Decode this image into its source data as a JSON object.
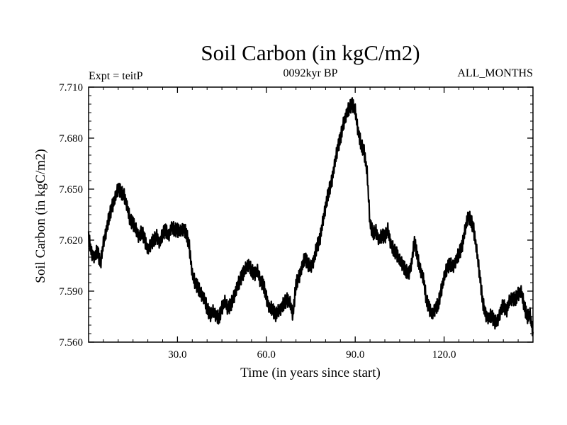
{
  "chart_data": {
    "type": "line",
    "title": "Soil Carbon (in kgC/m2)",
    "subtitle": "0092kyr BP",
    "left_label": "Expt = teitP",
    "right_label": "ALL_MONTHS",
    "xlabel": "Time (in years since start)",
    "ylabel": "Soil Carbon (in kgC/m2)",
    "xlim": [
      0,
      150
    ],
    "ylim": [
      7.56,
      7.71
    ],
    "x_ticks": [
      30,
      60,
      90,
      120
    ],
    "x_tick_labels": [
      "30.0",
      "60.0",
      "90.0",
      "120.0"
    ],
    "y_ticks": [
      7.56,
      7.59,
      7.62,
      7.65,
      7.68,
      7.71
    ],
    "y_tick_labels": [
      "7.560",
      "7.590",
      "7.620",
      "7.650",
      "7.680",
      "7.710"
    ],
    "grid": false,
    "series": [
      {
        "name": "Soil Carbon",
        "color": "#000000",
        "x": [
          0,
          1,
          2,
          3,
          4,
          5,
          6,
          7,
          8,
          9,
          10,
          11,
          12,
          13,
          14,
          15,
          16,
          17,
          18,
          19,
          20,
          21,
          22,
          23,
          24,
          25,
          26,
          27,
          28,
          29,
          30,
          31,
          32,
          33,
          34,
          35,
          36,
          37,
          38,
          39,
          40,
          41,
          42,
          43,
          44,
          45,
          46,
          47,
          48,
          49,
          50,
          51,
          52,
          53,
          54,
          55,
          56,
          57,
          58,
          59,
          60,
          61,
          62,
          63,
          64,
          65,
          66,
          67,
          68,
          69,
          70,
          71,
          72,
          73,
          74,
          75,
          76,
          77,
          78,
          79,
          80,
          81,
          82,
          83,
          84,
          85,
          86,
          87,
          88,
          89,
          90,
          91,
          92,
          93,
          94,
          95,
          96,
          97,
          98,
          99,
          100,
          101,
          102,
          103,
          104,
          105,
          106,
          107,
          108,
          109,
          110,
          111,
          112,
          113,
          114,
          115,
          116,
          117,
          118,
          119,
          120,
          121,
          122,
          123,
          124,
          125,
          126,
          127,
          128,
          129,
          130,
          131,
          132,
          133,
          134,
          135,
          136,
          137,
          138,
          139,
          140,
          141,
          142,
          143,
          144,
          145,
          146,
          147,
          148,
          149,
          150
        ],
        "values": [
          7.622,
          7.612,
          7.61,
          7.614,
          7.606,
          7.618,
          7.626,
          7.634,
          7.64,
          7.645,
          7.651,
          7.648,
          7.646,
          7.64,
          7.632,
          7.63,
          7.626,
          7.622,
          7.625,
          7.62,
          7.614,
          7.618,
          7.62,
          7.622,
          7.618,
          7.624,
          7.626,
          7.622,
          7.628,
          7.626,
          7.626,
          7.625,
          7.627,
          7.624,
          7.616,
          7.6,
          7.595,
          7.592,
          7.588,
          7.586,
          7.58,
          7.576,
          7.578,
          7.576,
          7.574,
          7.58,
          7.584,
          7.58,
          7.582,
          7.586,
          7.592,
          7.596,
          7.6,
          7.603,
          7.606,
          7.602,
          7.6,
          7.602,
          7.596,
          7.594,
          7.586,
          7.58,
          7.58,
          7.576,
          7.578,
          7.58,
          7.583,
          7.585,
          7.583,
          7.576,
          7.594,
          7.598,
          7.604,
          7.61,
          7.606,
          7.604,
          7.608,
          7.616,
          7.62,
          7.63,
          7.64,
          7.648,
          7.654,
          7.664,
          7.674,
          7.68,
          7.688,
          7.694,
          7.698,
          7.7,
          7.696,
          7.684,
          7.676,
          7.672,
          7.66,
          7.63,
          7.624,
          7.625,
          7.62,
          7.623,
          7.622,
          7.626,
          7.618,
          7.614,
          7.612,
          7.608,
          7.606,
          7.602,
          7.6,
          7.606,
          7.62,
          7.61,
          7.602,
          7.598,
          7.585,
          7.58,
          7.576,
          7.58,
          7.582,
          7.59,
          7.598,
          7.604,
          7.606,
          7.604,
          7.608,
          7.612,
          7.616,
          7.625,
          7.634,
          7.632,
          7.626,
          7.614,
          7.6,
          7.584,
          7.576,
          7.574,
          7.576,
          7.572,
          7.572,
          7.578,
          7.582,
          7.578,
          7.584,
          7.586,
          7.585,
          7.588,
          7.59,
          7.582,
          7.575,
          7.576,
          7.566
        ]
      }
    ]
  }
}
